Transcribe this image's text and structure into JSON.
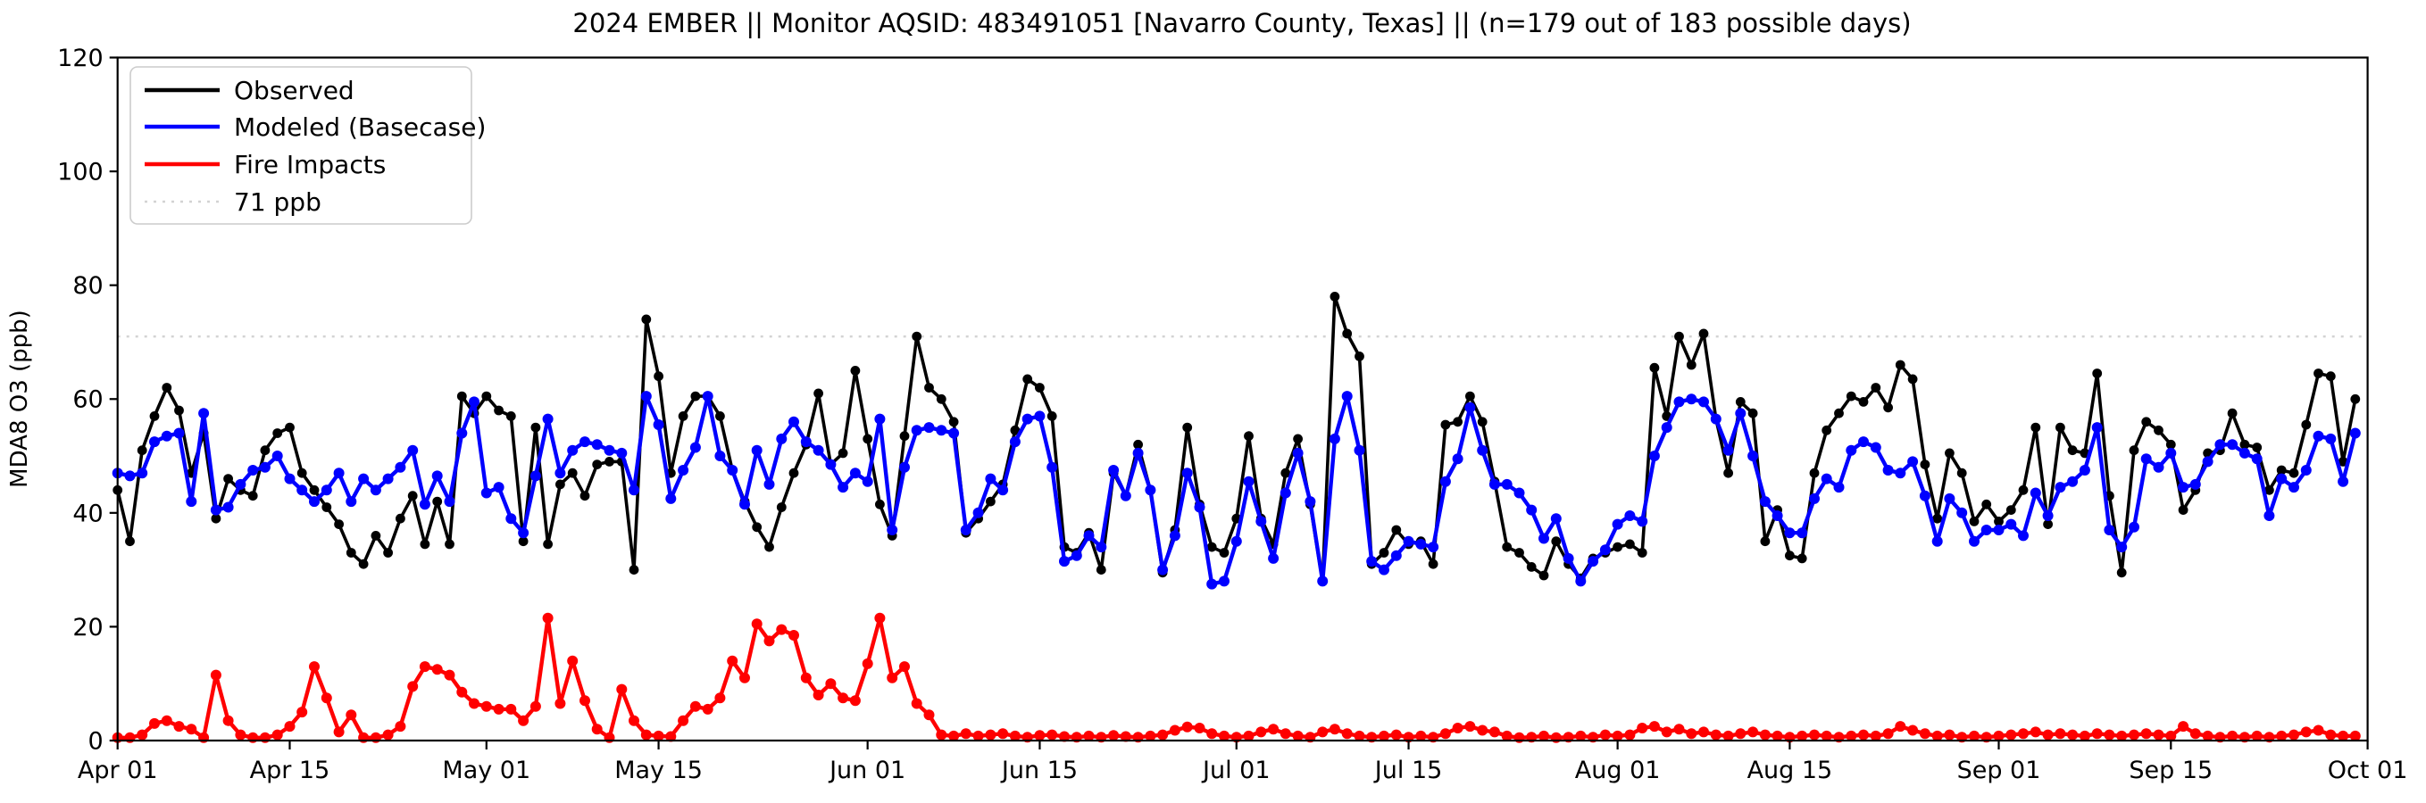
{
  "title": "2024 EMBER || Monitor AQSID: 483491051 [Navarro County, Texas] || (n=179 out of 183 possible days)",
  "ylabel": "MDA8 O3 (ppb)",
  "legend": {
    "items": [
      {
        "label": "Observed",
        "color": "#000000",
        "style": "solid"
      },
      {
        "label": "Modeled (Basecase)",
        "color": "#0000ff",
        "style": "solid"
      },
      {
        "label": "Fire Impacts",
        "color": "#ff0000",
        "style": "solid"
      },
      {
        "label": "71 ppb",
        "color": "#d3d3d3",
        "style": "dotted"
      }
    ]
  },
  "chart_data": {
    "type": "line",
    "title": "2024 EMBER || Monitor AQSID: 483491051 [Navarro County, Texas] || (n=179 out of 183 possible days)",
    "xlabel": "",
    "ylabel": "MDA8 O3 (ppb)",
    "ylim": [
      0,
      120
    ],
    "y_ticks": [
      0,
      20,
      40,
      60,
      80,
      100,
      120
    ],
    "x_start_date": "Apr 01",
    "x_end_date": "Oct 01",
    "n_days": 183,
    "x_ticks": [
      {
        "day": 0,
        "label": "Apr 01"
      },
      {
        "day": 14,
        "label": "Apr 15"
      },
      {
        "day": 30,
        "label": "May 01"
      },
      {
        "day": 44,
        "label": "May 15"
      },
      {
        "day": 61,
        "label": "Jun 01"
      },
      {
        "day": 75,
        "label": "Jun 15"
      },
      {
        "day": 91,
        "label": "Jul 01"
      },
      {
        "day": 105,
        "label": "Jul 15"
      },
      {
        "day": 122,
        "label": "Aug 01"
      },
      {
        "day": 136,
        "label": "Aug 15"
      },
      {
        "day": 153,
        "label": "Sep 01"
      },
      {
        "day": 167,
        "label": "Sep 15"
      },
      {
        "day": 183,
        "label": "Oct 01"
      }
    ],
    "threshold": {
      "value": 71,
      "label": "71 ppb",
      "color": "#d3d3d3"
    },
    "grid": false,
    "legend_position": "upper left",
    "series": [
      {
        "name": "Observed",
        "color": "#000000",
        "values": [
          44,
          35,
          51,
          57,
          62,
          58,
          47,
          54,
          39,
          46,
          44,
          43,
          51,
          54,
          55,
          47,
          44,
          41,
          38,
          33,
          31,
          36,
          33,
          39,
          43,
          34.5,
          42,
          34.5,
          60.5,
          57.5,
          60.5,
          58,
          57,
          35,
          55,
          34.5,
          45,
          47,
          43,
          48.5,
          49,
          49,
          30,
          74,
          64,
          47,
          57,
          60.5,
          60.5,
          57,
          47.5,
          42,
          37.5,
          34,
          41,
          47,
          52,
          61,
          48.5,
          50.5,
          65,
          53,
          41.5,
          36,
          53.5,
          71,
          62,
          60,
          56,
          36.5,
          39,
          42,
          45,
          54.5,
          63.5,
          62,
          57,
          34,
          33,
          36.5,
          30,
          47,
          43,
          52,
          44,
          29.5,
          37,
          55,
          41.5,
          34,
          33,
          39,
          53.5,
          39,
          34.5,
          47,
          53,
          41.5,
          28,
          78,
          71.5,
          67.5,
          31,
          33,
          37,
          34.5,
          35,
          31,
          55.5,
          56,
          60.5,
          56,
          45.5,
          34,
          33,
          30.5,
          29,
          35,
          31,
          28.5,
          32,
          33,
          34,
          34.5,
          33,
          65.5,
          57,
          71,
          66,
          71.5,
          56.5,
          47,
          59.5,
          57.5,
          35,
          40.5,
          32.5,
          32,
          47,
          54.5,
          57.5,
          60.5,
          59.5,
          62,
          58.5,
          66,
          63.5,
          48.5,
          39,
          50.5,
          47,
          38.5,
          41.5,
          38.5,
          40.5,
          44,
          55,
          38,
          55,
          51,
          50.5,
          64.5,
          43,
          29.5,
          51,
          56,
          54.5,
          52,
          40.5,
          44,
          50.5,
          51,
          57.5,
          52,
          51.5,
          44,
          47.5,
          47,
          55.5,
          64.5,
          64,
          49,
          60
        ]
      },
      {
        "name": "Modeled (Basecase)",
        "color": "#0000ff",
        "values": [
          47,
          46.5,
          47,
          52.5,
          53.5,
          54,
          42,
          57.5,
          40.5,
          41,
          45,
          47.5,
          48,
          50,
          46,
          44,
          42,
          44,
          47,
          42,
          46,
          44,
          46,
          48,
          51,
          41.5,
          46.5,
          42,
          54,
          59.5,
          43.5,
          44.5,
          39,
          36.5,
          46.5,
          56.5,
          47,
          51,
          52.5,
          52,
          51,
          50.5,
          44,
          60.5,
          55.5,
          42.5,
          47.5,
          51.5,
          60.5,
          50,
          47.5,
          41.5,
          51,
          45,
          53,
          56,
          52.5,
          51,
          48.5,
          44.5,
          47,
          45.5,
          56.5,
          37,
          48,
          54.5,
          55,
          54.5,
          54,
          37,
          40,
          46,
          44,
          52.5,
          56.5,
          57,
          48,
          31.5,
          32.5,
          36,
          34,
          47.5,
          43,
          50.5,
          44,
          30,
          36,
          47,
          41,
          27.5,
          28,
          35,
          45.5,
          38.5,
          32,
          43.5,
          50.5,
          42,
          28,
          53,
          60.5,
          51,
          31.5,
          30,
          32.5,
          35,
          34.5,
          34,
          45.5,
          49.5,
          58.5,
          51,
          45,
          45,
          43.5,
          40.5,
          35.5,
          39,
          32,
          28,
          31.5,
          33.5,
          38,
          39.5,
          38.5,
          50,
          55,
          59.5,
          60,
          59.5,
          56.5,
          51,
          57.5,
          50,
          42,
          39.5,
          36.5,
          36.5,
          42.5,
          46,
          44.5,
          51,
          52.5,
          51.5,
          47.5,
          47,
          49,
          43,
          35,
          42.5,
          40,
          35,
          37,
          37,
          38,
          36,
          43.5,
          39.5,
          44.5,
          45.5,
          47.5,
          55,
          37,
          34,
          37.5,
          49.5,
          48,
          50.5,
          44.5,
          45,
          49,
          52,
          52,
          50.5,
          49.5,
          39.5,
          46,
          44.5,
          47.5,
          53.5,
          53,
          45.5,
          54
        ]
      },
      {
        "name": "Fire Impacts",
        "color": "#ff0000",
        "values": [
          0.5,
          0.5,
          1,
          3,
          3.5,
          2.5,
          2,
          0.5,
          11.5,
          3.5,
          1,
          0.5,
          0.5,
          1,
          2.5,
          5,
          13,
          7.5,
          1.5,
          4.5,
          0.5,
          0.5,
          1,
          2.5,
          9.5,
          13,
          12.5,
          11.5,
          8.5,
          6.5,
          6,
          5.5,
          5.5,
          3.5,
          6,
          21.5,
          6.5,
          14,
          7,
          2,
          0.5,
          9,
          3.5,
          1,
          0.8,
          0.7,
          3.5,
          6,
          5.5,
          7.5,
          14,
          11,
          20.5,
          17.5,
          19.5,
          18.5,
          11,
          8,
          10,
          7.5,
          7,
          13.5,
          21.5,
          11,
          13,
          6.5,
          4.5,
          1,
          0.8,
          1.2,
          0.8,
          1,
          1.2,
          0.8,
          0.6,
          0.9,
          1,
          0.7,
          0.6,
          0.8,
          0.6,
          0.9,
          0.7,
          0.6,
          0.8,
          1,
          1.8,
          2.4,
          2.2,
          1.2,
          0.8,
          0.6,
          0.8,
          1.5,
          2,
          1.2,
          0.8,
          0.6,
          1.5,
          2,
          1.2,
          0.8,
          0.6,
          0.8,
          1,
          0.6,
          0.8,
          0.6,
          1.2,
          2.2,
          2.5,
          1.8,
          1.5,
          0.8,
          0.5,
          0.6,
          0.8,
          0.5,
          0.6,
          0.8,
          0.6,
          1,
          0.8,
          1,
          2.2,
          2.5,
          1.5,
          2,
          1.2,
          1.5,
          1,
          0.8,
          1.2,
          1.5,
          1,
          0.8,
          0.6,
          0.8,
          1,
          0.8,
          0.6,
          0.8,
          1,
          0.8,
          1.2,
          2.5,
          1.8,
          1.2,
          0.8,
          1,
          0.6,
          0.8,
          0.6,
          0.8,
          1,
          1.2,
          1.5,
          1,
          1.2,
          1,
          0.8,
          1.2,
          1,
          0.8,
          1,
          1.2,
          1,
          0.8,
          2.5,
          1.2,
          0.8,
          0.6,
          0.8,
          0.6,
          0.8,
          0.6,
          0.8,
          1,
          1.5,
          1.8,
          1,
          0.8,
          0.8
        ]
      }
    ]
  }
}
